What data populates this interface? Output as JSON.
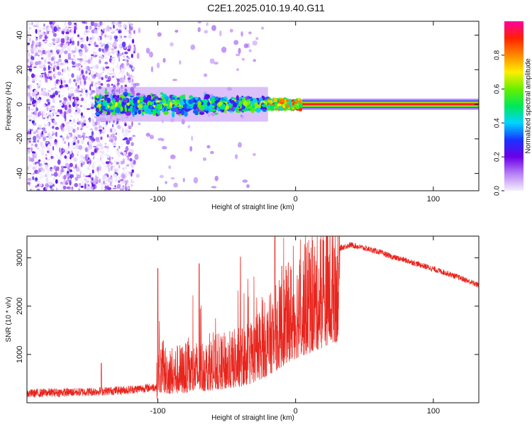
{
  "title": "C2E1.2025.010.19.40.G11",
  "chart_data": [
    {
      "type": "heatmap",
      "xlabel": "Height of straight line (km)",
      "ylabel": "Frequency (Hz)",
      "xlim": [
        -195,
        133
      ],
      "ylim": [
        -50,
        48
      ],
      "x_ticks": [
        -100,
        0,
        100
      ],
      "y_ticks": [
        -40,
        -20,
        0,
        20,
        40
      ],
      "grid": false,
      "colorbar": {
        "label": "Normalized spectral amplitude",
        "range": [
          0,
          1
        ],
        "ticks": [
          "0.0",
          "0.2",
          "0.4",
          "0.6",
          "0.8"
        ],
        "colors": [
          "#f4f0ff",
          "#b780f5",
          "#6a00e8",
          "#1a33ff",
          "#00d4ff",
          "#00e85a",
          "#66f000",
          "#ffee00",
          "#ff8800",
          "#ff2200",
          "#ff00a0"
        ]
      },
      "regions": [
        {
          "x_range": [
            -195,
            -117
          ],
          "freq_range": [
            -50,
            48
          ],
          "level": "low, scattered noise"
        },
        {
          "x_range": [
            -145,
            -20
          ],
          "freq_range": [
            -8,
            8
          ],
          "level": "mixed 0.2-0.6 band"
        },
        {
          "x_range": [
            -20,
            5
          ],
          "freq_range": [
            -3,
            3
          ],
          "level": "0.5-0.9 narrowing band"
        },
        {
          "x_range": [
            5,
            133
          ],
          "freq_range": [
            -1,
            1
          ],
          "level": "~0.9 steady carrier"
        }
      ]
    },
    {
      "type": "line",
      "xlabel": "Height of straight line (km)",
      "ylabel": "SNR (10 * v/v)",
      "xlim": [
        -195,
        133
      ],
      "ylim": [
        0,
        3450
      ],
      "x_ticks": [
        -100,
        0,
        100
      ],
      "y_ticks": [
        1000,
        2000,
        3000
      ],
      "color": "#e8241c",
      "grid": false,
      "series": [
        {
          "x": [
            -195,
            -180,
            -160,
            -140,
            -120,
            -101,
            -100,
            -90,
            -80,
            -70,
            -60,
            -50,
            -40,
            -30,
            -20,
            -10,
            -5,
            0,
            10,
            20,
            25,
            30,
            32,
            40,
            50,
            60,
            70,
            80,
            90,
            100,
            110,
            120,
            133
          ],
          "y": [
            180,
            200,
            210,
            230,
            260,
            320,
            700,
            640,
            680,
            720,
            780,
            820,
            900,
            1050,
            1300,
            1600,
            1800,
            1900,
            2100,
            2300,
            2450,
            2500,
            3200,
            3270,
            3200,
            3130,
            3020,
            2950,
            2860,
            2770,
            2680,
            2580,
            2430
          ],
          "peaks": [
            [
              -141,
              820
            ],
            [
              -100,
              2780
            ],
            [
              -70,
              2880
            ],
            [
              -40,
              3020
            ],
            [
              -15,
              3450
            ],
            [
              -10,
              2830
            ],
            [
              10,
              3100
            ],
            [
              28,
              3200
            ]
          ]
        }
      ]
    }
  ]
}
